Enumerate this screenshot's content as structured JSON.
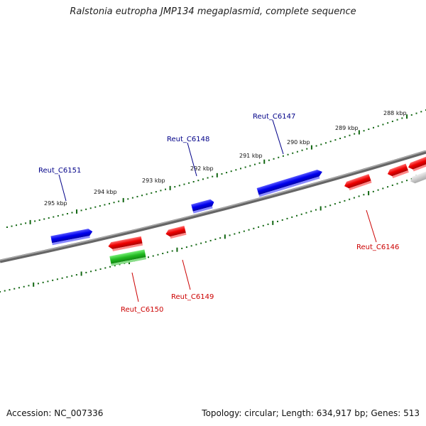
{
  "title": "Ralstonia eutropha JMP134 megaplasmid, complete sequence",
  "accession": "Accession: NC_007336",
  "summary": "Topology: circular; Length: 634,917 bp; Genes: 513",
  "colors": {
    "forward": "#0000ee",
    "reverse": "#ee0000",
    "rna": "#22bb22",
    "other": "#bbbbbb",
    "backbone": "#777777",
    "ticks": "#116611",
    "label_forward": "#000088",
    "label_reverse": "#cc0000"
  },
  "scale_ticks": [
    {
      "label": "295 kbp"
    },
    {
      "label": "294 kbp"
    },
    {
      "label": "293 kbp"
    },
    {
      "label": "292 kbp"
    },
    {
      "label": "291 kbp"
    },
    {
      "label": "290 kbp"
    },
    {
      "label": "289 kbp"
    },
    {
      "label": "288 kbp"
    }
  ],
  "genes": [
    {
      "label": "Reut_C6151",
      "strand": "forward"
    },
    {
      "label": "Reut_C6148",
      "strand": "forward"
    },
    {
      "label": "Reut_C6147",
      "strand": "forward"
    },
    {
      "label": "Reut_C6150",
      "strand": "reverse"
    },
    {
      "label": "Reut_C6149",
      "strand": "reverse"
    },
    {
      "label": "Reut_C6146",
      "strand": "reverse"
    }
  ]
}
